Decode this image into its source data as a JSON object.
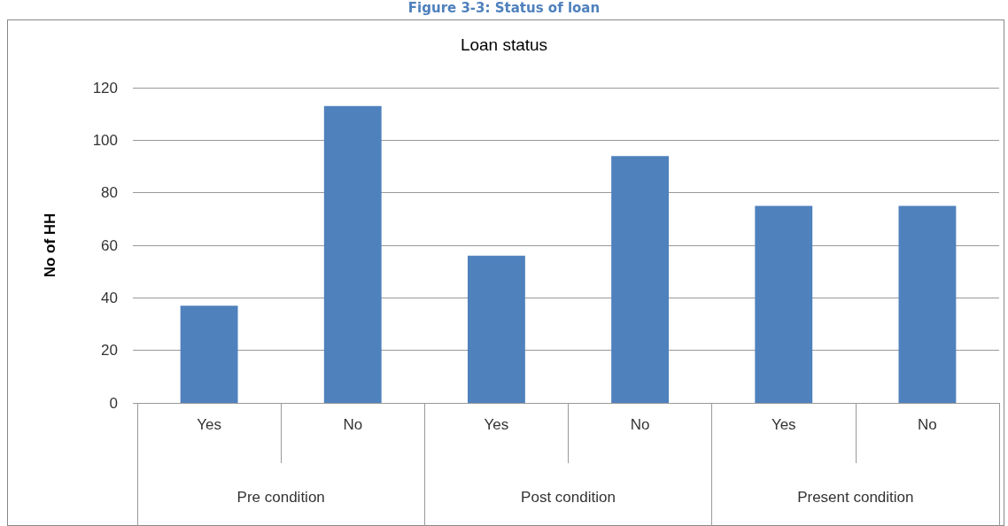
{
  "chart_data": {
    "type": "bar",
    "title": "Loan status",
    "ylabel": "No of HH",
    "annotations": [
      "Figure 3-3: Status of loan",
      "Pre condition",
      "Post condition",
      "Present condition"
    ],
    "categories": [
      "Yes",
      "No",
      "Yes",
      "No",
      "Yes",
      "No"
    ],
    "values": [
      37,
      113,
      56,
      94,
      75,
      75
    ],
    "color": "#4f81bd",
    "ylim": [
      0,
      120
    ],
    "yticks": [
      0,
      20,
      40,
      60,
      80,
      100,
      120
    ],
    "grid": "y"
  }
}
